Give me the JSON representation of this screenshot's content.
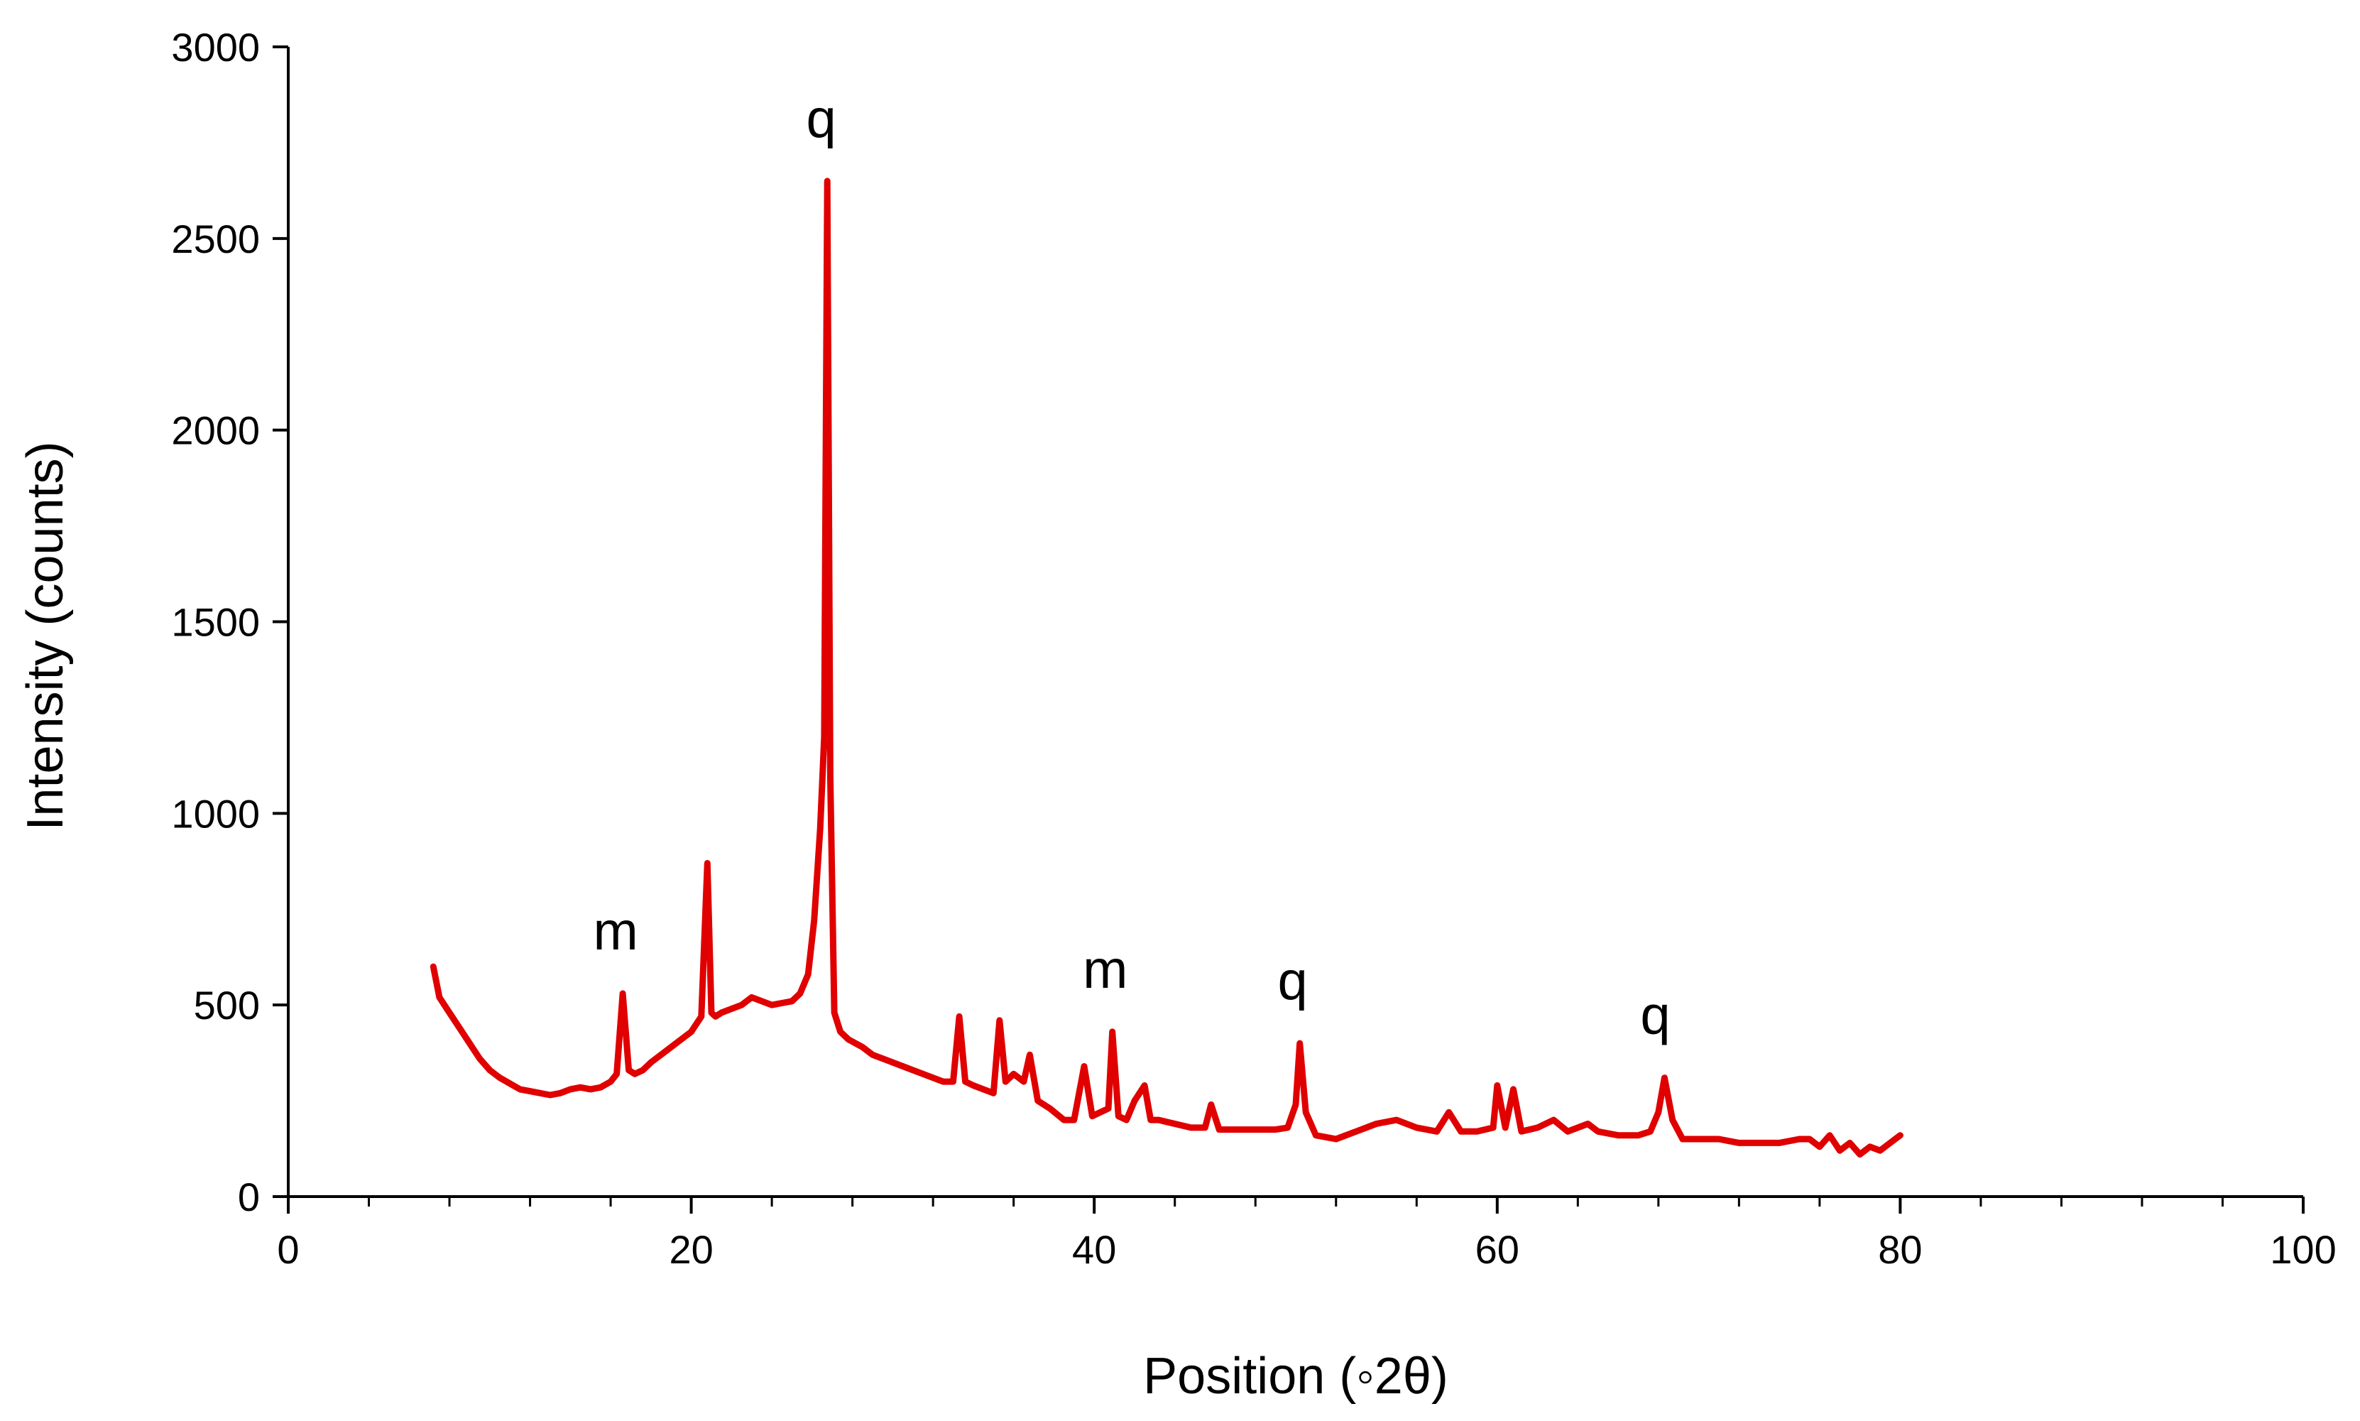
{
  "chart_data": {
    "type": "line",
    "title": "",
    "xlabel": "Position (◦2θ)",
    "ylabel": "Intensity (counts)",
    "xlim": [
      0,
      100
    ],
    "ylim": [
      0,
      3000
    ],
    "x_ticks": [
      0,
      20,
      40,
      60,
      80,
      100
    ],
    "x_tick_labels": [
      "0",
      "20",
      "40",
      "60",
      "80",
      "100"
    ],
    "y_ticks": [
      0,
      500,
      1000,
      1500,
      2000,
      2500,
      3000
    ],
    "y_tick_labels": [
      "0",
      "500",
      "1000",
      "1500",
      "2000",
      "2500",
      "3000"
    ],
    "x_minor_tick_step": 4,
    "grid": false,
    "legend": "none",
    "series_color": "#e00000",
    "series": [
      {
        "x": [
          7.2,
          7.5,
          8.0,
          8.5,
          9.0,
          9.5,
          10.0,
          10.5,
          11.0,
          11.5,
          12.0,
          12.5,
          13.0,
          13.5,
          14.0,
          14.5,
          15.0,
          15.5,
          16.0,
          16.3,
          16.6,
          16.9,
          17.2,
          17.6,
          18.0,
          18.5,
          19.0,
          19.5,
          20.0,
          20.5,
          20.8,
          21.0,
          21.2,
          21.5,
          22.0,
          22.5,
          23.0,
          23.5,
          24.0,
          24.5,
          25.0,
          25.4,
          25.8,
          26.1,
          26.4,
          26.6,
          26.75,
          26.9,
          27.1,
          27.4,
          27.8,
          28.5,
          29.0,
          29.5,
          30.0,
          30.5,
          31.0,
          31.5,
          32.0,
          32.5,
          33.0,
          33.3,
          33.6,
          34.0,
          34.5,
          35.0,
          35.3,
          35.6,
          36.0,
          36.5,
          36.8,
          37.2,
          37.8,
          38.5,
          39.0,
          39.5,
          39.9,
          40.3,
          40.7,
          40.9,
          41.2,
          41.6,
          42.0,
          42.5,
          42.8,
          43.2,
          44.0,
          44.8,
          45.5,
          45.8,
          46.2,
          47.0,
          48.0,
          49.0,
          49.6,
          50.0,
          50.2,
          50.5,
          51.0,
          52.0,
          53.0,
          54.0,
          55.0,
          56.0,
          57.0,
          57.6,
          58.2,
          59.0,
          59.8,
          60.0,
          60.4,
          60.8,
          61.2,
          62.0,
          62.8,
          63.5,
          64.5,
          65.0,
          66.0,
          67.0,
          67.6,
          68.0,
          68.3,
          68.7,
          69.2,
          70.0,
          71.0,
          72.0,
          73.0,
          74.0,
          75.0,
          75.5,
          76.0,
          76.5,
          77.0,
          77.5,
          78.0,
          78.5,
          79.0,
          79.5,
          80.0
        ],
        "y": [
          600,
          520,
          480,
          440,
          400,
          360,
          330,
          310,
          295,
          280,
          275,
          270,
          265,
          270,
          280,
          285,
          280,
          285,
          300,
          320,
          530,
          330,
          320,
          330,
          350,
          370,
          390,
          410,
          430,
          470,
          870,
          480,
          470,
          480,
          490,
          500,
          520,
          510,
          500,
          505,
          510,
          530,
          580,
          720,
          960,
          1200,
          2650,
          1100,
          480,
          430,
          410,
          390,
          370,
          360,
          350,
          340,
          330,
          320,
          310,
          300,
          300,
          470,
          300,
          290,
          280,
          270,
          460,
          300,
          320,
          300,
          370,
          250,
          230,
          200,
          200,
          340,
          210,
          220,
          230,
          430,
          210,
          200,
          250,
          290,
          200,
          200,
          190,
          180,
          180,
          240,
          175,
          175,
          175,
          175,
          180,
          240,
          400,
          220,
          160,
          150,
          170,
          190,
          200,
          180,
          170,
          220,
          170,
          170,
          180,
          290,
          180,
          280,
          170,
          180,
          200,
          170,
          190,
          170,
          160,
          160,
          170,
          220,
          310,
          200,
          150,
          150,
          150,
          140,
          140,
          140,
          150,
          150,
          130,
          160,
          120,
          140,
          110,
          130,
          120,
          140,
          160
        ]
      }
    ],
    "annotations": [
      {
        "text": "m",
        "x": 16.6
      },
      {
        "text": "q",
        "x": 26.8
      },
      {
        "text": "m",
        "x": 40.9
      },
      {
        "text": "q",
        "x": 50.2
      },
      {
        "text": "q",
        "x": 68.2
      }
    ]
  }
}
